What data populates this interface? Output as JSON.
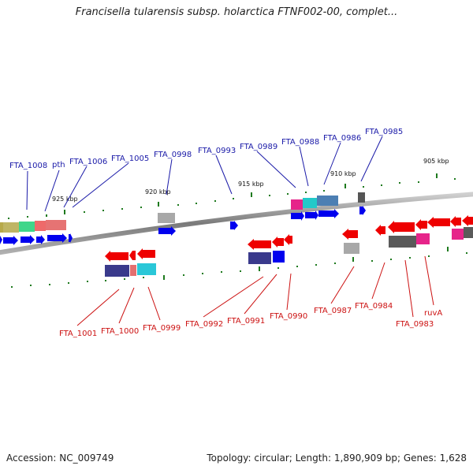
{
  "title": "Francisella tularensis subsp. holarctica FTNF002-00, complet...",
  "footer": {
    "accession": "Accession: NC_009749",
    "summary": "Topology: circular; Length: 1,890,909 bp; Genes: 1,628"
  },
  "scale_labels": [
    "925 kbp",
    "920 kbp",
    "915 kbp",
    "910 kbp",
    "905 kbp"
  ],
  "forward_genes": [
    "FTA_1008",
    "pth",
    "FTA_1006",
    "FTA_1005",
    "FTA_0998",
    "FTA_0993",
    "FTA_0989",
    "FTA_0988",
    "FTA_0986",
    "FTA_0985"
  ],
  "reverse_genes": [
    "FTA_1001",
    "FTA_1000",
    "FTA_0999",
    "FTA_0992",
    "FTA_0991",
    "FTA_0990",
    "FTA_0987",
    "FTA_0984",
    "FTA_0983",
    "ruvA"
  ],
  "colors": {
    "forward": "#1a1aa8",
    "reverse": "#cc1111",
    "gene_fwd": "#0000ee",
    "gene_rev": "#ee0000",
    "tick": "#1e7a1e",
    "backbone": "#8a8a8a"
  }
}
